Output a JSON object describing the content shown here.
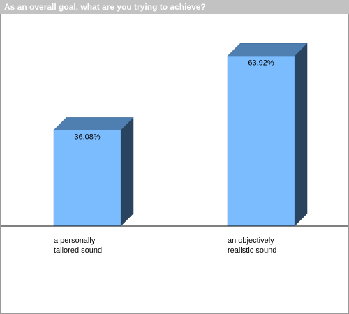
{
  "chart_data": {
    "type": "bar",
    "title": "As an overall goal, what are you trying to achieve?",
    "categories": [
      "a personally tailored sound",
      "an objectively realistic sound"
    ],
    "category_lines": [
      [
        "a personally",
        "tailored sound"
      ],
      [
        "an objectively",
        "realistic sound"
      ]
    ],
    "values": [
      36.08,
      63.92
    ],
    "value_labels": [
      "36.08%",
      "63.92%"
    ],
    "ylim": [
      0,
      75
    ],
    "grid": false,
    "legend": false,
    "xlabel": "",
    "ylabel": "",
    "colors": {
      "bar_front": "#7bbcff",
      "bar_top": "#4f7fb0",
      "bar_side": "#2a4460",
      "title_bar": "#c2c2c2",
      "title_text": "#ffffff",
      "axis": "#000000"
    }
  }
}
